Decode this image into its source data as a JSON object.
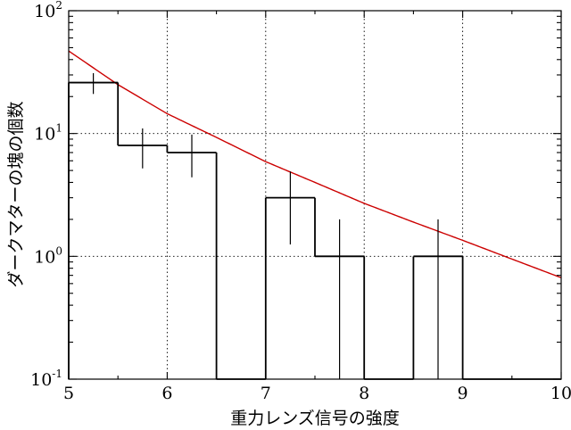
{
  "chart_data": {
    "type": "histogram",
    "xlabel": "重力レンズ信号の強度",
    "ylabel": "ダークマターの塊の個数",
    "xlim": [
      5,
      10
    ],
    "ylim": [
      0.1,
      100
    ],
    "yscale": "log",
    "grid": true,
    "x_ticks": [
      "5",
      "6",
      "7",
      "8",
      "9",
      "10"
    ],
    "y_ticks": [
      {
        "base": "10",
        "exp": "-1",
        "value": 0.1
      },
      {
        "base": "10",
        "exp": "0",
        "value": 1
      },
      {
        "base": "10",
        "exp": "1",
        "value": 10
      },
      {
        "base": "10",
        "exp": "2",
        "value": 100
      }
    ],
    "bins": [
      {
        "x0": 5.0,
        "x1": 5.5,
        "count": 26,
        "err_low": 21,
        "err_high": 31
      },
      {
        "x0": 5.5,
        "x1": 6.0,
        "count": 8,
        "err_low": 5.2,
        "err_high": 11
      },
      {
        "x0": 6.0,
        "x1": 6.5,
        "count": 7,
        "err_low": 4.4,
        "err_high": 9.8
      },
      {
        "x0": 6.5,
        "x1": 7.0,
        "count": 0
      },
      {
        "x0": 7.0,
        "x1": 7.5,
        "count": 3,
        "err_low": 1.25,
        "err_high": 4.9
      },
      {
        "x0": 7.5,
        "x1": 8.0,
        "count": 1,
        "err_low": 0.1,
        "err_high": 2.0
      },
      {
        "x0": 8.0,
        "x1": 8.5,
        "count": 0
      },
      {
        "x0": 8.5,
        "x1": 9.0,
        "count": 1,
        "err_low": 0.1,
        "err_high": 2.0
      },
      {
        "x0": 9.0,
        "x1": 10.0,
        "count": 0
      }
    ],
    "fit_curve": {
      "color": "#cc0000",
      "x": [
        5.0,
        5.5,
        6.0,
        6.5,
        7.0,
        7.5,
        8.0,
        8.5,
        9.0,
        9.5,
        10.0
      ],
      "y": [
        47,
        25,
        14.5,
        9.3,
        5.9,
        4.0,
        2.7,
        1.9,
        1.35,
        0.95,
        0.67
      ]
    }
  }
}
